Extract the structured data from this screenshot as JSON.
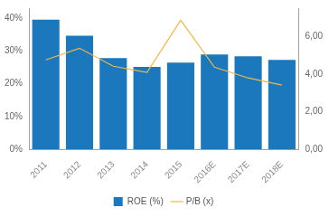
{
  "chart_data": {
    "type": "bar",
    "categories": [
      "2011",
      "2012",
      "2013",
      "2014",
      "2015",
      "2016E",
      "2017E",
      "2018E"
    ],
    "series": [
      {
        "name": "ROE (%)",
        "type": "bar",
        "color": "#1b78bd",
        "values": [
          39.5,
          34.6,
          27.8,
          25.1,
          26.4,
          28.9,
          28.3,
          27.2
        ]
      },
      {
        "name": "P/B (x)",
        "type": "line",
        "color": "#f2b746",
        "axis": "y2",
        "values": [
          4.75,
          5.37,
          4.41,
          4.08,
          6.86,
          4.36,
          3.79,
          3.41
        ]
      }
    ],
    "ylim": [
      0,
      43
    ],
    "yticks": [
      {
        "value": 0,
        "label": "0%"
      },
      {
        "value": 10,
        "label": "10%"
      },
      {
        "value": 20,
        "label": "20%"
      },
      {
        "value": 30,
        "label": "30%"
      },
      {
        "value": 40,
        "label": "40%"
      }
    ],
    "y2lim": [
      0,
      7.5
    ],
    "y2ticks": [
      {
        "value": 0,
        "label": "0,00"
      },
      {
        "value": 2,
        "label": "2,00"
      },
      {
        "value": 4,
        "label": "4,00"
      },
      {
        "value": 6,
        "label": "6,00"
      }
    ],
    "grid": false,
    "legend": "bottom"
  }
}
